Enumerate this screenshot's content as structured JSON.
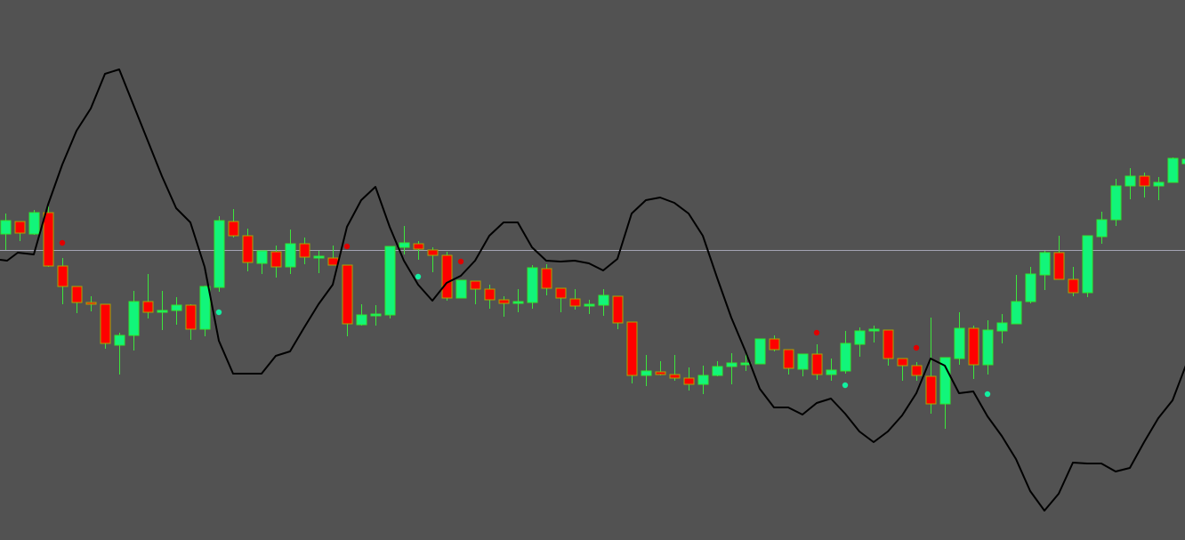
{
  "chart_data": {
    "type": "candlestick",
    "title": "",
    "xlabel": "",
    "ylabel": "",
    "ylim": [
      0,
      607
    ],
    "grid": false,
    "legend": "none",
    "colors": {
      "background": "#525252",
      "bull_body": "#12f57a",
      "bull_border": "#2ee82e",
      "bear_body": "#ff0000",
      "bear_border": "#a8a800",
      "wick": "#3ce63c",
      "oscillator_line": "#000000",
      "reference_line": "#a3a3b3",
      "signal_dot_sell": "#e00000",
      "signal_dot_buy": "#12f0a0"
    },
    "reference_level": 326,
    "candles_ohlc": [
      [
        344,
        367,
        326,
        359
      ],
      [
        358,
        358,
        336,
        345
      ],
      [
        344,
        371,
        343,
        368
      ],
      [
        368,
        375,
        307,
        308
      ],
      [
        308,
        317,
        265,
        285
      ],
      [
        285,
        285,
        255,
        267
      ],
      [
        267,
        274,
        257,
        265
      ],
      [
        265,
        265,
        215,
        221
      ],
      [
        219,
        233,
        186,
        230
      ],
      [
        230,
        280,
        213,
        268
      ],
      [
        268,
        299,
        249,
        256
      ],
      [
        256,
        280,
        236,
        258
      ],
      [
        258,
        273,
        242,
        264
      ],
      [
        264,
        265,
        225,
        237
      ],
      [
        237,
        286,
        229,
        285
      ],
      [
        284,
        364,
        279,
        359
      ],
      [
        358,
        372,
        340,
        342
      ],
      [
        342,
        350,
        302,
        312
      ],
      [
        311,
        325,
        299,
        325
      ],
      [
        324,
        331,
        295,
        307
      ],
      [
        307,
        349,
        299,
        333
      ],
      [
        333,
        340,
        310,
        318
      ],
      [
        317,
        325,
        300,
        319
      ],
      [
        317,
        331,
        309,
        309
      ],
      [
        309,
        309,
        229,
        243
      ],
      [
        242,
        265,
        241,
        253
      ],
      [
        252,
        264,
        241,
        254
      ],
      [
        253,
        330,
        249,
        330
      ],
      [
        329,
        353,
        321,
        334
      ],
      [
        333,
        336,
        315,
        327
      ],
      [
        326,
        329,
        301,
        320
      ],
      [
        320,
        324,
        269,
        272
      ],
      [
        272,
        292,
        272,
        292
      ],
      [
        291,
        291,
        265,
        282
      ],
      [
        282,
        287,
        260,
        270
      ],
      [
        270,
        274,
        251,
        266
      ],
      [
        266,
        282,
        256,
        268
      ],
      [
        267,
        309,
        260,
        306
      ],
      [
        305,
        310,
        275,
        283
      ],
      [
        283,
        283,
        256,
        272
      ],
      [
        271,
        282,
        259,
        263
      ],
      [
        263,
        270,
        254,
        265
      ],
      [
        264,
        282,
        252,
        275
      ],
      [
        274,
        274,
        237,
        244
      ],
      [
        245,
        245,
        176,
        185
      ],
      [
        185,
        208,
        173,
        190
      ],
      [
        189,
        201,
        185,
        186
      ],
      [
        186,
        208,
        179,
        182
      ],
      [
        182,
        194,
        168,
        175
      ],
      [
        175,
        196,
        164,
        185
      ],
      [
        185,
        201,
        184,
        195
      ],
      [
        195,
        210,
        175,
        199
      ],
      [
        197,
        209,
        190,
        199
      ],
      [
        198,
        226,
        198,
        226
      ],
      [
        226,
        230,
        212,
        214
      ],
      [
        214,
        214,
        186,
        193
      ],
      [
        192,
        209,
        184,
        209
      ],
      [
        209,
        220,
        180,
        186
      ],
      [
        186,
        204,
        179,
        191
      ],
      [
        190,
        235,
        187,
        221
      ],
      [
        220,
        239,
        206,
        235
      ],
      [
        235,
        241,
        222,
        237
      ],
      [
        236,
        236,
        196,
        204
      ],
      [
        204,
        204,
        179,
        196
      ],
      [
        196,
        200,
        179,
        185
      ],
      [
        184,
        250,
        142,
        153
      ],
      [
        153,
        205,
        125,
        205
      ],
      [
        204,
        256,
        197,
        238
      ],
      [
        238,
        241,
        181,
        197
      ],
      [
        197,
        247,
        186,
        236
      ],
      [
        235,
        254,
        221,
        244
      ],
      [
        243,
        298,
        243,
        268
      ],
      [
        268,
        307,
        266,
        299
      ],
      [
        298,
        325,
        281,
        323
      ],
      [
        323,
        342,
        293,
        293
      ],
      [
        293,
        307,
        274,
        278
      ],
      [
        278,
        342,
        273,
        342
      ],
      [
        341,
        369,
        333,
        360
      ],
      [
        360,
        406,
        353,
        398
      ],
      [
        398,
        418,
        383,
        409
      ],
      [
        409,
        413,
        385,
        398
      ],
      [
        398,
        408,
        382,
        402
      ],
      [
        402,
        430,
        402,
        429
      ],
      [
        423,
        430,
        420,
        428
      ]
    ],
    "oscillator": {
      "lead_points": [
        [
          -0.375,
          315
        ],
        [
          0.125,
          314
        ],
        [
          0.875,
          323
        ]
      ],
      "start_bar": 2,
      "values": [
        321,
        377,
        422,
        460,
        485,
        524,
        529,
        489,
        449,
        409,
        373,
        357,
        307,
        224,
        187,
        187,
        187,
        207,
        212,
        239,
        265,
        287,
        352,
        382,
        397,
        352,
        314,
        287,
        269,
        289,
        297,
        314,
        342,
        357,
        357,
        329,
        314,
        313,
        314,
        311,
        303,
        316,
        367,
        382,
        385,
        379,
        367,
        342,
        295,
        250,
        212,
        170,
        149,
        149,
        141,
        154,
        159,
        142,
        122,
        110,
        122,
        140,
        165,
        204,
        196,
        165,
        167,
        139,
        117,
        91,
        55,
        33,
        52,
        87,
        86,
        86,
        77,
        81,
        110,
        137,
        157,
        199
      ]
    },
    "signal_dots": [
      {
        "bar": 4,
        "value": 334,
        "kind": "sell"
      },
      {
        "bar": 24,
        "value": 330,
        "kind": "sell"
      },
      {
        "bar": 32,
        "value": 313,
        "kind": "sell"
      },
      {
        "bar": 57,
        "value": 233,
        "kind": "sell"
      },
      {
        "bar": 64,
        "value": 216,
        "kind": "sell"
      },
      {
        "bar": 15,
        "value": 256,
        "kind": "buy"
      },
      {
        "bar": 29,
        "value": 296,
        "kind": "buy"
      },
      {
        "bar": 59,
        "value": 174,
        "kind": "buy"
      },
      {
        "bar": 69,
        "value": 164,
        "kind": "buy"
      }
    ]
  }
}
